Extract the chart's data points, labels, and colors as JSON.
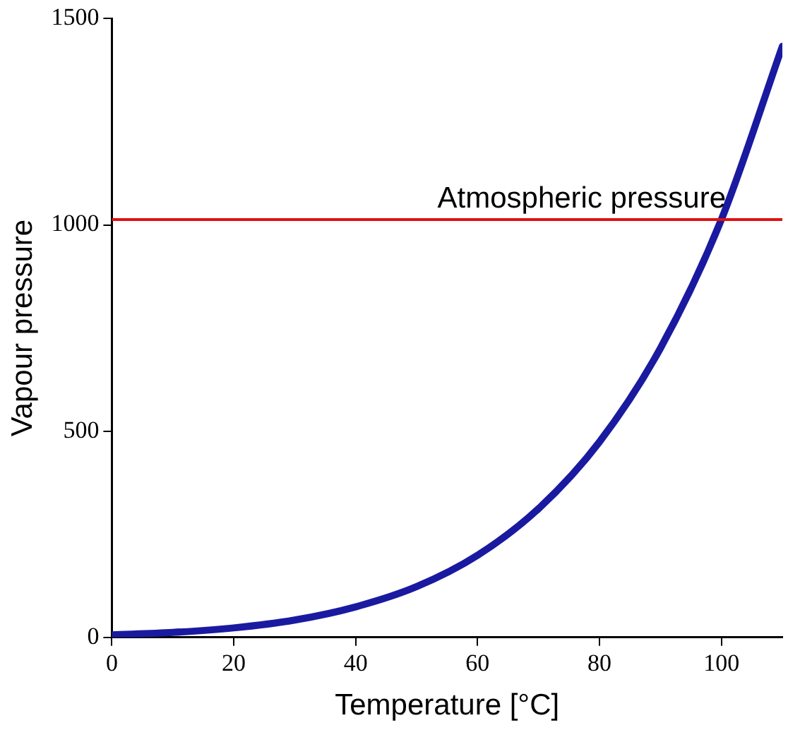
{
  "chart_data": {
    "type": "line",
    "xlabel": "Temperature [°C]",
    "ylabel": "Vapour pressure",
    "x": [
      0,
      10,
      20,
      30,
      40,
      50,
      60,
      70,
      80,
      90,
      100,
      110
    ],
    "series": [
      {
        "color": "#1a1aa0",
        "values": [
          6,
          12,
          23,
          42,
          74,
          123,
          199,
          312,
          474,
          701,
          1013,
          1433
        ]
      }
    ],
    "xlim": [
      0,
      110
    ],
    "ylim": [
      0,
      1500
    ],
    "xticks": [
      0,
      20,
      40,
      60,
      80,
      100
    ],
    "yticks": [
      0,
      500,
      1000,
      1500
    ],
    "ref_lines": [
      {
        "axis": "y",
        "value": 1013,
        "label": "Atmospheric pressure",
        "color": "#e01010"
      }
    ],
    "grid": false,
    "legend": false,
    "marker": "none",
    "line_style": "solid"
  }
}
